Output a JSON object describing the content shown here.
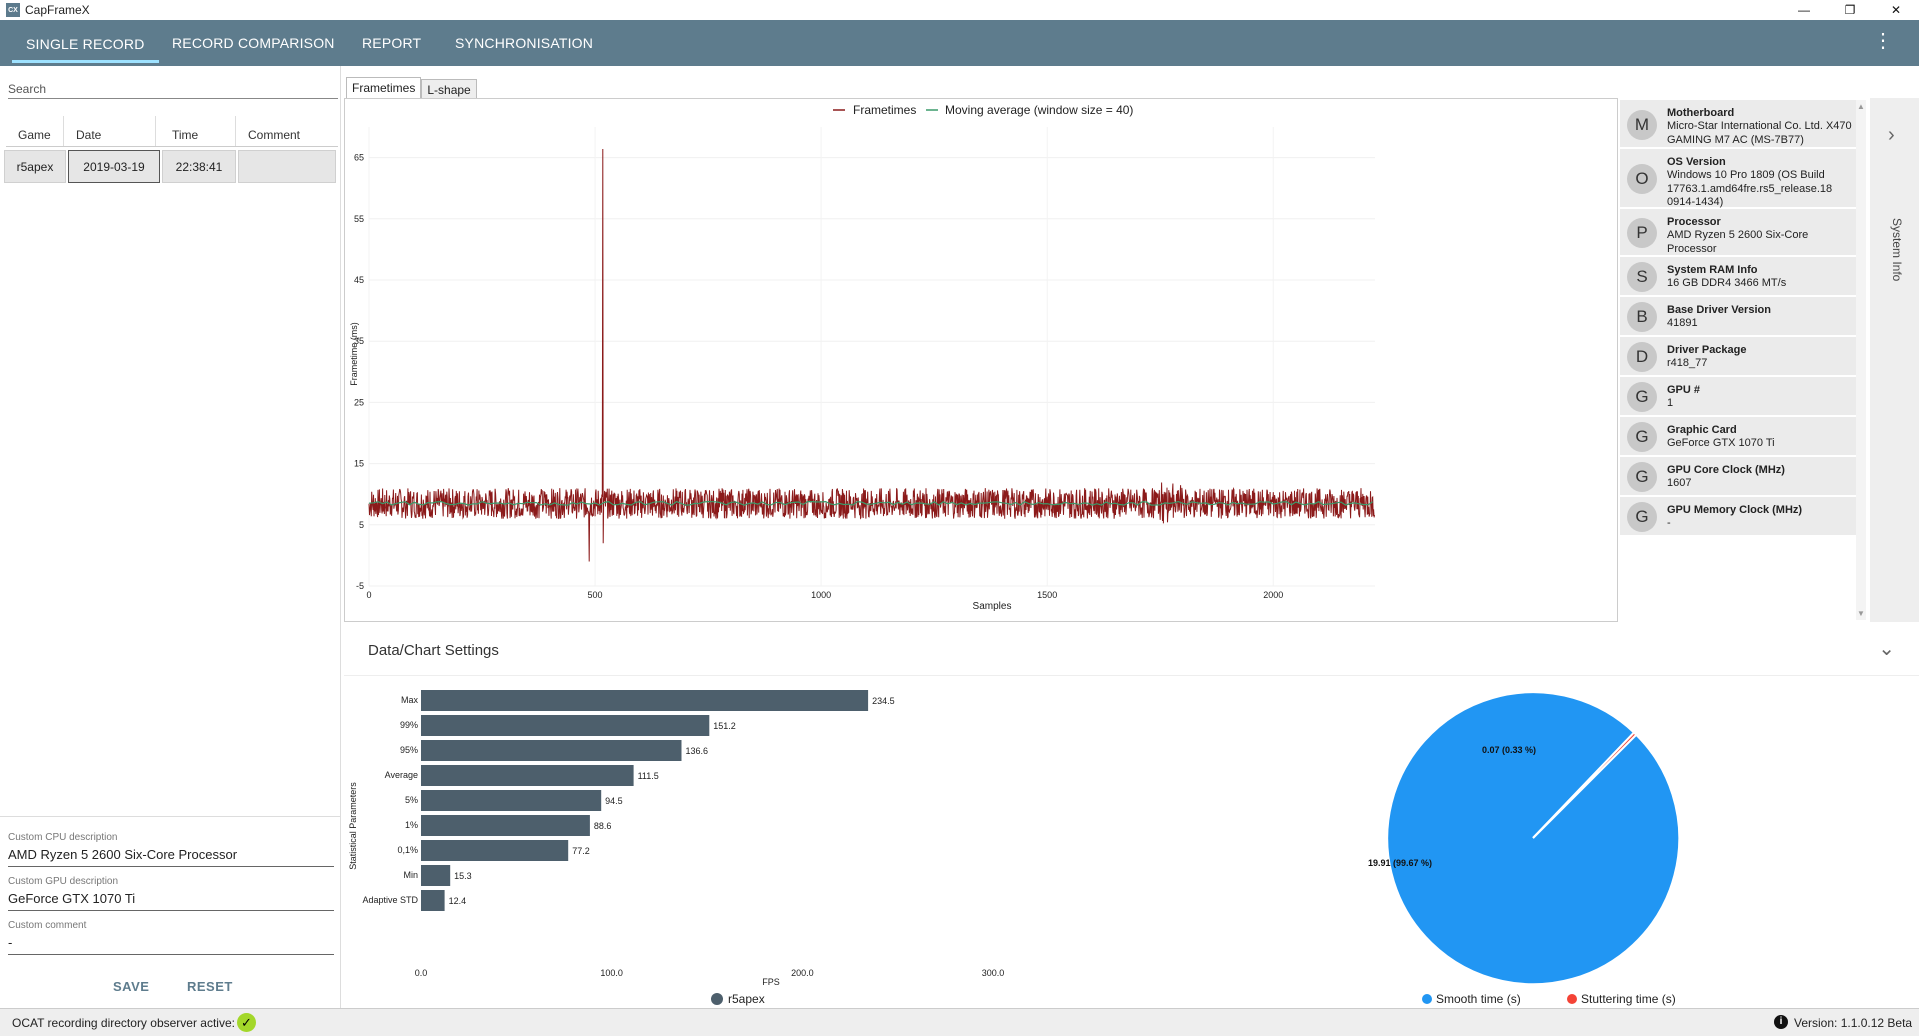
{
  "window": {
    "title": "CapFrameX",
    "icon_label": "CX",
    "minimize": "—",
    "restore": "❐",
    "close": "✕"
  },
  "nav": {
    "tabs": [
      "SINGLE RECORD",
      "RECORD COMPARISON",
      "REPORT",
      "SYNCHRONISATION"
    ],
    "menu_icon": "⋮"
  },
  "left": {
    "search_placeholder": "Search",
    "columns": [
      "Game",
      "Date",
      "Time",
      "Comment"
    ],
    "row": {
      "game": "r5apex",
      "date": "2019-03-19",
      "time": "22:38:41",
      "comment": ""
    },
    "cpu_label": "Custom CPU description",
    "cpu_value": "AMD Ryzen 5 2600 Six-Core Processor",
    "gpu_label": "Custom GPU description",
    "gpu_value": "GeForce GTX 1070 Ti",
    "comment_label": "Custom comment",
    "comment_value": "-",
    "save": "SAVE",
    "reset": "RESET"
  },
  "chart_tabs": [
    "Frametimes",
    "L-shape"
  ],
  "chart_data": [
    {
      "type": "line",
      "title": "",
      "legend": [
        "Frametimes",
        "Moving average (window size = 40)"
      ],
      "xlabel": "Samples",
      "ylabel": "Frametime (ms)",
      "xlim": [
        0,
        2225
      ],
      "ylim": [
        -5,
        70
      ],
      "x_ticks": [
        "0",
        "500",
        "1000",
        "1500",
        "2000"
      ],
      "y_ticks": [
        "-5",
        "5",
        "15",
        "25",
        "35",
        "45",
        "55",
        "65"
      ],
      "baseline_ms": 8.5,
      "spike": {
        "x": 517,
        "y": 66.4
      },
      "colors": {
        "frametimes": "#8b1a1a",
        "moving_average": "#3a9a6a"
      }
    },
    {
      "type": "bar",
      "orientation": "horizontal",
      "ylabel": "Statistical Parameters",
      "xlabel": "FPS",
      "categories": [
        "Max",
        "99%",
        "95%",
        "Average",
        "5%",
        "1%",
        "0,1%",
        "Min",
        "Adaptive STD"
      ],
      "values": [
        234.5,
        151.2,
        136.6,
        111.5,
        94.5,
        88.6,
        77.2,
        15.3,
        12.4
      ],
      "value_labels": [
        "234.5",
        "151.2",
        "136.6",
        "111.5",
        "94.5",
        "88.6",
        "77.2",
        "15.3",
        "12.4"
      ],
      "x_ticks": [
        "0.0",
        "100.0",
        "200.0",
        "300.0"
      ],
      "xlim": [
        0,
        300
      ],
      "legend": [
        "r5apex"
      ],
      "color": "#4d5f6c"
    },
    {
      "type": "pie",
      "labels": [
        "Smooth time (s)",
        "Stuttering time (s)"
      ],
      "values": [
        19.91,
        0.07
      ],
      "data_labels": [
        "19.91 (99.67 %)",
        "0.07 (0.33 %)"
      ],
      "colors": [
        "#2196f3",
        "#f44336"
      ]
    }
  ],
  "system_info": {
    "items": [
      {
        "letter": "M",
        "name": "Motherboard",
        "value": "Micro-Star International Co. Ltd. X470 GAMING M7 AC (MS-7B77)"
      },
      {
        "letter": "O",
        "name": "OS Version",
        "value": "Windows 10 Pro 1809 (OS Build 17763.1.amd64fre.rs5_release.18 0914-1434)"
      },
      {
        "letter": "P",
        "name": "Processor",
        "value": "AMD Ryzen 5 2600 Six-Core Processor"
      },
      {
        "letter": "S",
        "name": "System RAM Info",
        "value": "16 GB DDR4 3466 MT/s"
      },
      {
        "letter": "B",
        "name": "Base Driver Version",
        "value": "41891"
      },
      {
        "letter": "D",
        "name": "Driver Package",
        "value": "r418_77"
      },
      {
        "letter": "G",
        "name": "GPU #",
        "value": "1"
      },
      {
        "letter": "G",
        "name": "Graphic Card",
        "value": "GeForce GTX 1070 Ti"
      },
      {
        "letter": "G",
        "name": "GPU Core Clock (MHz)",
        "value": "1607"
      },
      {
        "letter": "G",
        "name": "GPU Memory Clock (MHz)",
        "value": "-"
      }
    ],
    "side_label": "System Info",
    "expand_icon": "›"
  },
  "settings": {
    "title": "Data/Chart Settings",
    "chevron": "⌄"
  },
  "status": {
    "observer": "OCAT recording directory observer active:",
    "version": "Version:  1.1.0.12 Beta",
    "info_icon": "i"
  }
}
